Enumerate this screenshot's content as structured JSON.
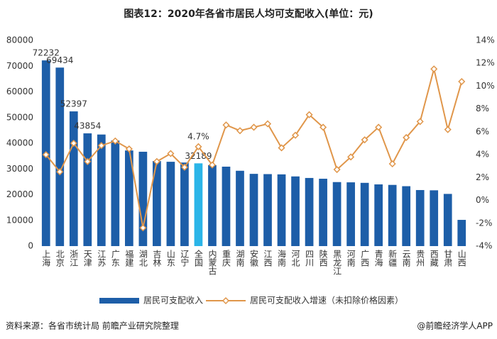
{
  "chart_data": {
    "type": "bar-line",
    "title": "图表12：2020年各省市居民人均可支配收入(单位：元)",
    "source": "资料来源：各省市统计局 前瞻产业研究院整理",
    "credit": "@前瞻经济学人APP",
    "categories": [
      "上海",
      "北京",
      "浙江",
      "天津",
      "江苏",
      "广东",
      "福建",
      "湖北",
      "吉林",
      "山东",
      "辽宁",
      "全国",
      "内蒙古",
      "重庆",
      "湖南",
      "安徽",
      "江西",
      "海南",
      "河北",
      "四川",
      "陕西",
      "黑龙江",
      "河南",
      "广西",
      "青海",
      "新疆",
      "云南",
      "贵州",
      "西藏",
      "甘肃",
      "山西"
    ],
    "series": [
      {
        "name": "居民可支配收入",
        "kind": "bar",
        "color": "#1d5ea8",
        "colors": [
          "#1d5ea8",
          "#1d5ea8",
          "#1d5ea8",
          "#1d5ea8",
          "#1d5ea8",
          "#1d5ea8",
          "#1d5ea8",
          "#1d5ea8",
          "#1d5ea8",
          "#1d5ea8",
          "#1d5ea8",
          "#2bb5e8",
          "#1d5ea8",
          "#1d5ea8",
          "#1d5ea8",
          "#1d5ea8",
          "#1d5ea8",
          "#1d5ea8",
          "#1d5ea8",
          "#1d5ea8",
          "#1d5ea8",
          "#1d5ea8",
          "#1d5ea8",
          "#1d5ea8",
          "#1d5ea8",
          "#1d5ea8",
          "#1d5ea8",
          "#1d5ea8",
          "#1d5ea8",
          "#1d5ea8",
          "#1d5ea8"
        ],
        "values": [
          72232,
          69434,
          52397,
          43854,
          43400,
          41100,
          37200,
          36700,
          33100,
          32800,
          32500,
          32189,
          31500,
          30900,
          29300,
          28100,
          28000,
          27900,
          27100,
          26500,
          26200,
          24900,
          24800,
          24600,
          24000,
          23800,
          23300,
          21800,
          21700,
          20300,
          10200
        ],
        "value_labels": [
          "72232",
          "69434",
          "52397",
          "43854",
          null,
          null,
          null,
          null,
          null,
          null,
          null,
          "32189",
          null,
          null,
          null,
          null,
          null,
          null,
          null,
          null,
          null,
          null,
          null,
          null,
          null,
          null,
          null,
          null,
          null,
          null,
          null
        ]
      },
      {
        "name": "居民可支配收入增速（未扣除价格因素）",
        "kind": "line",
        "axis": "y2",
        "color": "#e0964a",
        "values": [
          4.0,
          2.5,
          5.0,
          3.4,
          4.8,
          5.2,
          4.5,
          -2.4,
          3.4,
          4.1,
          2.9,
          4.7,
          3.1,
          6.6,
          6.1,
          6.4,
          6.7,
          4.6,
          5.7,
          7.5,
          6.4,
          2.7,
          3.8,
          5.3,
          6.4,
          3.2,
          5.5,
          6.9,
          11.5,
          6.2,
          10.4
        ],
        "value_labels": [
          null,
          null,
          null,
          null,
          null,
          null,
          null,
          null,
          null,
          null,
          null,
          "4.7%",
          null,
          null,
          null,
          null,
          null,
          null,
          null,
          null,
          null,
          null,
          null,
          null,
          null,
          null,
          null,
          null,
          null,
          null,
          null
        ]
      }
    ],
    "ylim": [
      0,
      80000
    ],
    "yticks": [
      0,
      10000,
      20000,
      30000,
      40000,
      50000,
      60000,
      70000,
      80000
    ],
    "y2lim": [
      -4,
      14
    ],
    "y2ticks": [
      {
        "value": -4,
        "label": "-4%"
      },
      {
        "value": -2,
        "label": "-2%"
      },
      {
        "value": 0,
        "label": "0%"
      },
      {
        "value": 2,
        "label": "2%"
      },
      {
        "value": 4,
        "label": "4%"
      },
      {
        "value": 6,
        "label": "6%"
      },
      {
        "value": 8,
        "label": "8%"
      },
      {
        "value": 10,
        "label": "10%"
      },
      {
        "value": 12,
        "label": "12%"
      },
      {
        "value": 14,
        "label": "14%"
      }
    ],
    "grid": false,
    "legend": "bottom"
  }
}
